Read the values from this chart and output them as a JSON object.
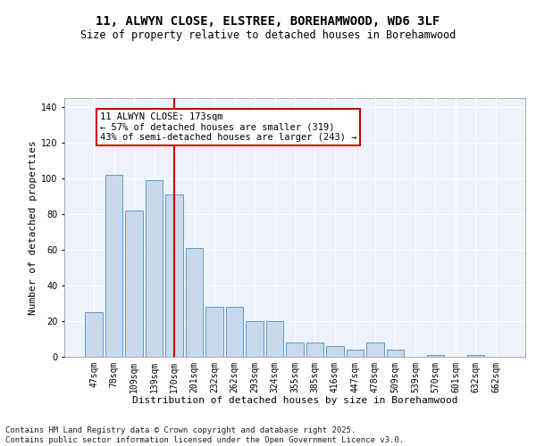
{
  "title": "11, ALWYN CLOSE, ELSTREE, BOREHAMWOOD, WD6 3LF",
  "subtitle": "Size of property relative to detached houses in Borehamwood",
  "xlabel": "Distribution of detached houses by size in Borehamwood",
  "ylabel": "Number of detached properties",
  "categories": [
    "47sqm",
    "78sqm",
    "109sqm",
    "139sqm",
    "170sqm",
    "201sqm",
    "232sqm",
    "262sqm",
    "293sqm",
    "324sqm",
    "355sqm",
    "385sqm",
    "416sqm",
    "447sqm",
    "478sqm",
    "509sqm",
    "539sqm",
    "570sqm",
    "601sqm",
    "632sqm",
    "662sqm"
  ],
  "values": [
    25,
    102,
    82,
    99,
    91,
    61,
    28,
    28,
    20,
    20,
    8,
    8,
    6,
    4,
    8,
    4,
    0,
    1,
    0,
    1,
    0
  ],
  "bar_color": "#c8d9ea",
  "bar_edge_color": "#5b9bd5",
  "vline_index": 4,
  "vline_color": "#cc0000",
  "annotation_text": "11 ALWYN CLOSE: 173sqm\n← 57% of detached houses are smaller (319)\n43% of semi-detached houses are larger (243) →",
  "annotation_box_color": "#cc0000",
  "ylim": [
    0,
    145
  ],
  "yticks": [
    0,
    20,
    40,
    60,
    80,
    100,
    120,
    140
  ],
  "footer": "Contains HM Land Registry data © Crown copyright and database right 2025.\nContains public sector information licensed under the Open Government Licence v3.0.",
  "background_color": "#ffffff",
  "plot_bg_color": "#eef2fa",
  "grid_color": "#ffffff",
  "title_fontsize": 10,
  "subtitle_fontsize": 8.5,
  "axis_label_fontsize": 8,
  "tick_fontsize": 7,
  "annotation_fontsize": 7.5,
  "footer_fontsize": 6.5
}
